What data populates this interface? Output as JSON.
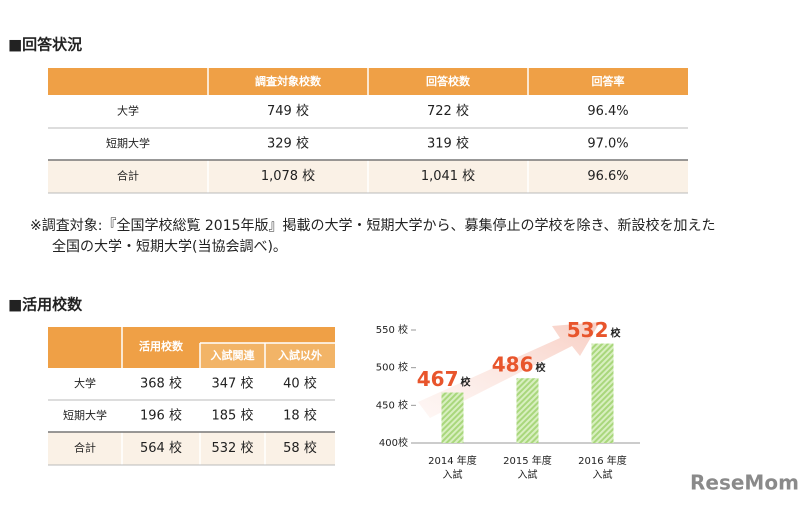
{
  "section1": {
    "title": "■回答状況",
    "table": {
      "header": [
        "調査対象校数",
        "回答校数",
        "回答率"
      ],
      "rows": [
        [
          "大学",
          "749 校",
          "722 校",
          "96.4%"
        ],
        [
          "短期大学",
          "329 校",
          "319 校",
          "97.0%"
        ],
        [
          "合計",
          "1,078 校",
          "1,041 校",
          "96.6%"
        ]
      ]
    },
    "note": [
      "※調査対象:『全国学校総覧 2015年版』掲載の大学・短期大学から、募集停止の学校を除き、新設校を加えた",
      "全国の大学・短期大学(当協会調べ)。"
    ]
  },
  "section2": {
    "title": "■活用校数",
    "table": {
      "header": "活用校数",
      "subheader": [
        "入試関連",
        "入試以外"
      ],
      "rows": [
        [
          "大学",
          "368 校",
          "347 校",
          "40 校"
        ],
        [
          "短期大学",
          "196 校",
          "185 校",
          "18 校"
        ],
        [
          "合計",
          "564 校",
          "532 校",
          "58 校"
        ]
      ]
    }
  },
  "chart_data": {
    "type": "bar",
    "categories": [
      [
        "2014 年度",
        "入試"
      ],
      [
        "2015 年度",
        "入試"
      ],
      [
        "2016 年度",
        "入試"
      ]
    ],
    "values": [
      467,
      486,
      532
    ],
    "value_unit": "校",
    "color": "#a9d77c",
    "label_color": "#e8552c",
    "ylim": [
      400,
      550
    ],
    "yticks": [
      {
        "value": 400,
        "label": "400校"
      },
      {
        "value": 450,
        "label": "450 校"
      },
      {
        "value": 500,
        "label": "500 校"
      },
      {
        "value": 550,
        "label": "550 校"
      }
    ]
  },
  "watermark": "ReseMom"
}
